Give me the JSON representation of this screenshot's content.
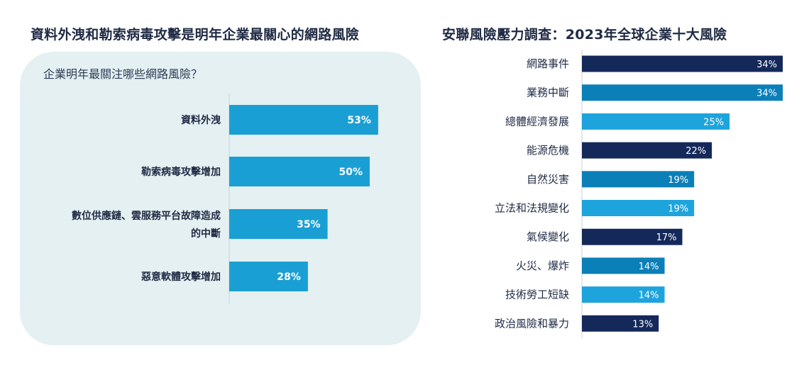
{
  "chart_data": [
    {
      "type": "bar",
      "orientation": "horizontal",
      "title": "資料外洩和勒索病毒攻擊是明年企業最關心的網路風險",
      "subtitle": "企業明年最關注哪些網路風險？",
      "categories": [
        [
          "資料外洩"
        ],
        [
          "勒索病毒攻擊增加"
        ],
        [
          "數位供應鏈、雲服務平台故障造成",
          "的中斷"
        ],
        [
          "惡意軟體攻擊增加"
        ]
      ],
      "values": [
        53,
        50,
        35,
        28
      ],
      "value_labels": [
        "53%",
        "50%",
        "35%",
        "28%"
      ],
      "unit": "%",
      "colors": [
        "#1a9fd4",
        "#1a9fd4",
        "#1a9fd4",
        "#1a9fd4"
      ],
      "xlim": [
        0,
        100
      ],
      "grid": false
    },
    {
      "type": "bar",
      "orientation": "horizontal",
      "title": "安聯風險壓力調查：2023年全球企業十大風險",
      "categories": [
        "網路事件",
        "業務中斷",
        "總體經濟發展",
        "能源危機",
        "自然災害",
        "立法和法規變化",
        "氣候變化",
        "火災、爆炸",
        "技術勞工短缺",
        "政治風險和暴力"
      ],
      "values": [
        34,
        34,
        25,
        22,
        19,
        19,
        17,
        14,
        14,
        13
      ],
      "value_labels": [
        "34%",
        "34%",
        "25%",
        "22%",
        "19%",
        "19%",
        "17%",
        "14%",
        "14%",
        "13%"
      ],
      "unit": "%",
      "colors": [
        "#14285a",
        "#0b7fb8",
        "#1ea4dc",
        "#14285a",
        "#0b7fb8",
        "#1ea4dc",
        "#14285a",
        "#0b7fb8",
        "#1ea4dc",
        "#14285a"
      ],
      "xlim": [
        0,
        34
      ],
      "grid": false
    }
  ]
}
